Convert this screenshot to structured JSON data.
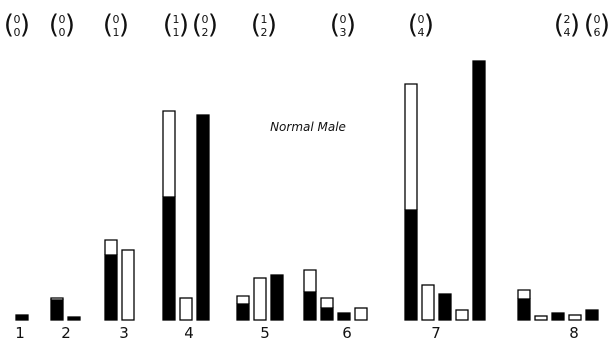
{
  "chart_data": {
    "type": "bar",
    "title": "Normal Male",
    "xlabel": "",
    "ylabel": "",
    "ylim": [
      0,
      260
    ],
    "axes_visible": false,
    "grid": false,
    "legend": "none",
    "colors": {
      "filled": "#000000",
      "hollow": "#ffffff",
      "outline": "#000000"
    },
    "categories": [
      "1",
      "2",
      "3",
      "4",
      "5",
      "6",
      "7",
      "8"
    ],
    "genotypes": [
      {
        "top": "0",
        "bottom": "0"
      },
      {
        "top": "0",
        "bottom": "0"
      },
      {
        "top": "0",
        "bottom": "1"
      },
      {
        "top": "1",
        "bottom": "1"
      },
      {
        "top": "0",
        "bottom": "2"
      },
      {
        "top": "1",
        "bottom": "2"
      },
      {
        "top": "0",
        "bottom": "3"
      },
      {
        "top": "0",
        "bottom": "4"
      },
      {
        "top": "2",
        "bottom": "4"
      },
      {
        "top": "0",
        "bottom": "6"
      }
    ],
    "groups": [
      {
        "label": "1",
        "bars": [
          {
            "value": 5,
            "fill": "black"
          }
        ]
      },
      {
        "label": "2",
        "bars": [
          {
            "value": 20,
            "fill": "black",
            "open_extension": 2
          },
          {
            "value": 3,
            "fill": "black"
          }
        ]
      },
      {
        "label": "3",
        "bars": [
          {
            "value": 65,
            "fill": "black",
            "open_extension": 15
          },
          {
            "value": 70,
            "fill": "white"
          }
        ]
      },
      {
        "label": "4",
        "bars": [
          {
            "value": 123,
            "fill": "black",
            "open_extension": 86
          },
          {
            "value": 22,
            "fill": "white"
          },
          {
            "value": 205,
            "fill": "black"
          }
        ]
      },
      {
        "label": "5",
        "bars": [
          {
            "value": 16,
            "fill": "black",
            "open_extension": 8
          },
          {
            "value": 42,
            "fill": "white"
          },
          {
            "value": 45,
            "fill": "black"
          }
        ]
      },
      {
        "label": "6",
        "bars": [
          {
            "value": 28,
            "fill": "black",
            "open_extension": 22
          },
          {
            "value": 12,
            "fill": "black",
            "open_extension": 10
          },
          {
            "value": 7,
            "fill": "black"
          },
          {
            "value": 12,
            "fill": "white"
          }
        ]
      },
      {
        "label": "7",
        "bars": [
          {
            "value": 110,
            "fill": "black",
            "open_extension": 126
          },
          {
            "value": 35,
            "fill": "white"
          },
          {
            "value": 26,
            "fill": "black"
          },
          {
            "value": 10,
            "fill": "white"
          },
          {
            "value": 259,
            "fill": "black"
          }
        ]
      },
      {
        "label": "8",
        "bars": [
          {
            "value": 21,
            "fill": "black",
            "open_extension": 9
          },
          {
            "value": 4,
            "fill": "white"
          },
          {
            "value": 7,
            "fill": "black"
          },
          {
            "value": 5,
            "fill": "white"
          },
          {
            "value": 10,
            "fill": "black"
          }
        ]
      }
    ]
  }
}
